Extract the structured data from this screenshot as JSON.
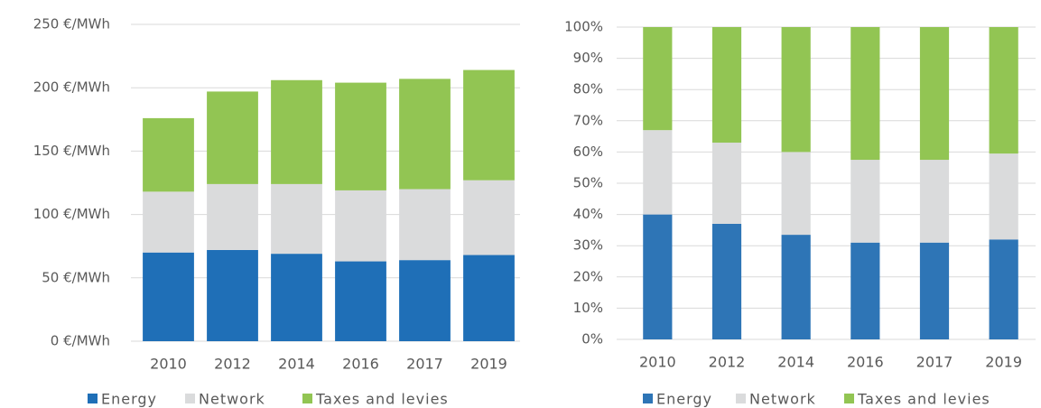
{
  "chart_data": [
    {
      "type": "stacked_bar",
      "categories": [
        "2010",
        "2012",
        "2014",
        "2016",
        "2017",
        "2019"
      ],
      "series": [
        {
          "name": "Energy",
          "color": "#1f6fb7",
          "values": [
            70,
            72,
            69,
            63,
            64,
            68
          ]
        },
        {
          "name": "Network",
          "color": "#dadbdc",
          "values": [
            48,
            52,
            55,
            56,
            56,
            59
          ]
        },
        {
          "name": "Taxes and levies",
          "color": "#92c553",
          "values": [
            58,
            73,
            82,
            85,
            87,
            87
          ]
        }
      ],
      "ylim": [
        0,
        250
      ],
      "yticks": [
        {
          "value": 0,
          "label": "0 €/MWh"
        },
        {
          "value": 50,
          "label": "50 €/MWh"
        },
        {
          "value": 100,
          "label": "100 €/MWh"
        },
        {
          "value": 150,
          "label": "150 €/MWh"
        },
        {
          "value": 200,
          "label": "200 €/MWh"
        },
        {
          "value": 250,
          "label": "250 €/MWh"
        }
      ],
      "grid": true,
      "legend": "bottom"
    },
    {
      "type": "stacked_bar",
      "categories": [
        "2010",
        "2012",
        "2014",
        "2016",
        "2017",
        "2019"
      ],
      "series": [
        {
          "name": "Energy",
          "color": "#2e75b6",
          "values": [
            40,
            37,
            33.5,
            31,
            31,
            32
          ]
        },
        {
          "name": "Network",
          "color": "#dadbdc",
          "values": [
            27,
            26,
            26.5,
            26.5,
            26.5,
            27.5
          ]
        },
        {
          "name": "Taxes and levies",
          "color": "#92c553",
          "values": [
            33,
            37,
            40,
            42.5,
            42.5,
            40.5
          ]
        }
      ],
      "ylim": [
        0,
        100
      ],
      "yticks": [
        {
          "value": 0,
          "label": "0%"
        },
        {
          "value": 10,
          "label": "10%"
        },
        {
          "value": 20,
          "label": "20%"
        },
        {
          "value": 30,
          "label": "30%"
        },
        {
          "value": 40,
          "label": "40%"
        },
        {
          "value": 50,
          "label": "50%"
        },
        {
          "value": 60,
          "label": "60%"
        },
        {
          "value": 70,
          "label": "70%"
        },
        {
          "value": 80,
          "label": "80%"
        },
        {
          "value": 90,
          "label": "90%"
        },
        {
          "value": 100,
          "label": "100%"
        }
      ],
      "grid": true,
      "legend": "bottom"
    }
  ]
}
